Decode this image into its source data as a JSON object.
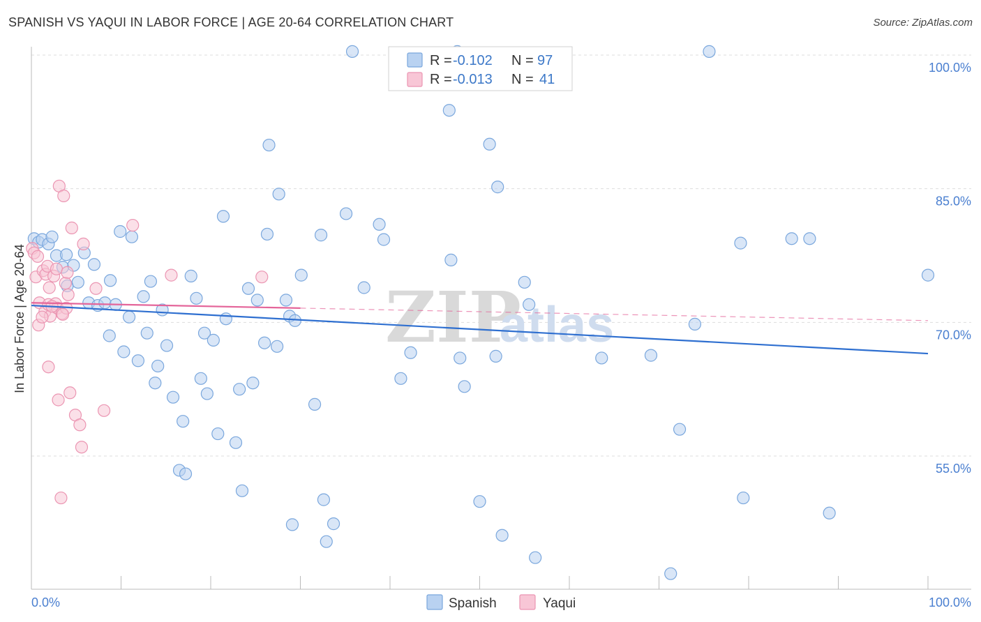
{
  "header": {
    "title": "SPANISH VS YAQUI IN LABOR FORCE | AGE 20-64 CORRELATION CHART",
    "source": "Source: ZipAtlas.com"
  },
  "watermark": {
    "zip": "ZIP",
    "atlas": "atlas"
  },
  "legend_top": {
    "rows": [
      {
        "series": "Spanish",
        "r_label": "R =",
        "r_value": "-0.102",
        "n_label": "N =",
        "n_value": "97"
      },
      {
        "series": "Yaqui",
        "r_label": "R =",
        "r_value": "-0.013",
        "n_label": "N =",
        "n_value": "41"
      }
    ]
  },
  "colors": {
    "spanish_fill": "#b9d2f1",
    "spanish_stroke": "#7aa7dd",
    "spanish_line": "#2e6fd0",
    "yaqui_fill": "#f8c6d6",
    "yaqui_stroke": "#eb95b2",
    "yaqui_line": "#e4659a",
    "grid": "#dddddd",
    "axis_label": "#4a7fd0"
  },
  "chart_data": {
    "type": "scatter",
    "title": "SPANISH VS YAQUI IN LABOR FORCE | AGE 20-64 CORRELATION CHART",
    "xlabel": "",
    "ylabel": "In Labor Force | Age 20-64",
    "xlim": [
      0,
      100
    ],
    "ylim": [
      40,
      101.5
    ],
    "x_tick_labels": [
      "0.0%",
      "100.0%"
    ],
    "y_ticks": [
      55,
      70,
      85,
      100
    ],
    "y_tick_labels": [
      "55.0%",
      "70.0%",
      "85.0%",
      "100.0%"
    ],
    "legend_bottom": [
      "Spanish",
      "Yaqui"
    ],
    "series": [
      {
        "name": "Spanish",
        "r": -0.102,
        "n": 97,
        "trend": {
          "x": [
            0,
            100
          ],
          "y": [
            71.9,
            66.5
          ],
          "dashed_beyond": null
        },
        "points": [
          [
            0.3,
            79.4
          ],
          [
            0.8,
            79.0
          ],
          [
            1.2,
            79.3
          ],
          [
            1.9,
            78.8
          ],
          [
            2.3,
            79.6
          ],
          [
            2.8,
            77.5
          ],
          [
            3.5,
            76.2
          ],
          [
            4.0,
            74.1
          ],
          [
            3.9,
            77.6
          ],
          [
            4.7,
            76.4
          ],
          [
            5.2,
            74.5
          ],
          [
            5.9,
            77.8
          ],
          [
            7.0,
            76.5
          ],
          [
            6.4,
            72.2
          ],
          [
            7.4,
            71.9
          ],
          [
            8.2,
            72.2
          ],
          [
            8.8,
            74.7
          ],
          [
            9.4,
            72.0
          ],
          [
            8.7,
            68.5
          ],
          [
            9.9,
            80.2
          ],
          [
            10.3,
            66.7
          ],
          [
            10.9,
            70.6
          ],
          [
            11.2,
            79.6
          ],
          [
            11.9,
            65.7
          ],
          [
            12.5,
            72.9
          ],
          [
            12.9,
            68.8
          ],
          [
            13.3,
            74.6
          ],
          [
            14.1,
            65.1
          ],
          [
            13.8,
            63.2
          ],
          [
            14.6,
            71.4
          ],
          [
            15.1,
            67.4
          ],
          [
            15.8,
            61.6
          ],
          [
            16.5,
            53.4
          ],
          [
            16.9,
            58.9
          ],
          [
            17.2,
            53.0
          ],
          [
            17.8,
            75.2
          ],
          [
            18.4,
            72.7
          ],
          [
            18.9,
            63.7
          ],
          [
            19.3,
            68.8
          ],
          [
            19.6,
            62.0
          ],
          [
            20.3,
            68.0
          ],
          [
            20.8,
            57.5
          ],
          [
            21.4,
            81.9
          ],
          [
            21.7,
            70.4
          ],
          [
            22.8,
            56.5
          ],
          [
            23.2,
            62.5
          ],
          [
            23.5,
            51.1
          ],
          [
            24.2,
            73.8
          ],
          [
            24.7,
            63.2
          ],
          [
            25.2,
            72.5
          ],
          [
            26.0,
            67.7
          ],
          [
            26.5,
            89.9
          ],
          [
            26.3,
            79.9
          ],
          [
            27.4,
            67.3
          ],
          [
            27.6,
            84.4
          ],
          [
            28.4,
            72.5
          ],
          [
            28.8,
            70.7
          ],
          [
            29.1,
            47.3
          ],
          [
            29.4,
            70.2
          ],
          [
            30.1,
            75.3
          ],
          [
            31.6,
            60.8
          ],
          [
            32.3,
            79.8
          ],
          [
            32.6,
            50.1
          ],
          [
            32.9,
            45.4
          ],
          [
            33.7,
            47.4
          ],
          [
            35.1,
            82.2
          ],
          [
            35.8,
            100.4
          ],
          [
            37.1,
            73.9
          ],
          [
            38.8,
            81.0
          ],
          [
            39.3,
            79.3
          ],
          [
            41.2,
            63.7
          ],
          [
            42.3,
            66.6
          ],
          [
            46.6,
            93.8
          ],
          [
            46.8,
            77.0
          ],
          [
            47.8,
            66.0
          ],
          [
            48.3,
            62.8
          ],
          [
            50.0,
            49.9
          ],
          [
            51.1,
            90.0
          ],
          [
            51.8,
            66.2
          ],
          [
            52.0,
            85.2
          ],
          [
            52.5,
            46.1
          ],
          [
            55.0,
            74.5
          ],
          [
            55.5,
            72.0
          ],
          [
            56.2,
            43.6
          ],
          [
            63.6,
            66.0
          ],
          [
            69.1,
            66.3
          ],
          [
            71.3,
            41.8
          ],
          [
            72.3,
            58.0
          ],
          [
            74.0,
            69.8
          ],
          [
            75.6,
            100.4
          ],
          [
            79.1,
            78.9
          ],
          [
            79.4,
            50.3
          ],
          [
            84.8,
            79.4
          ],
          [
            86.8,
            79.4
          ],
          [
            89.0,
            48.6
          ],
          [
            100.0,
            75.3
          ],
          [
            47.5,
            100.4
          ]
        ]
      },
      {
        "name": "Yaqui",
        "r": -0.013,
        "n": 41,
        "trend": {
          "x": [
            0,
            30
          ],
          "y": [
            72.2,
            71.6
          ],
          "dashed_to": [
            100,
            70.2
          ]
        },
        "points": [
          [
            0.1,
            78.3
          ],
          [
            0.3,
            77.8
          ],
          [
            0.5,
            75.1
          ],
          [
            0.7,
            77.4
          ],
          [
            0.9,
            72.2
          ],
          [
            0.8,
            69.7
          ],
          [
            1.3,
            75.8
          ],
          [
            1.5,
            71.2
          ],
          [
            1.6,
            75.4
          ],
          [
            1.8,
            76.3
          ],
          [
            1.9,
            72.0
          ],
          [
            2.0,
            73.9
          ],
          [
            1.9,
            65.0
          ],
          [
            2.1,
            70.7
          ],
          [
            2.5,
            75.2
          ],
          [
            2.7,
            72.1
          ],
          [
            2.8,
            76.0
          ],
          [
            2.9,
            71.6
          ],
          [
            3.0,
            61.3
          ],
          [
            3.1,
            85.3
          ],
          [
            3.3,
            50.3
          ],
          [
            3.4,
            71.0
          ],
          [
            3.6,
            84.2
          ],
          [
            3.8,
            74.4
          ],
          [
            3.9,
            71.6
          ],
          [
            4.0,
            75.6
          ],
          [
            4.1,
            73.1
          ],
          [
            4.3,
            62.1
          ],
          [
            4.5,
            80.6
          ],
          [
            4.9,
            59.6
          ],
          [
            5.4,
            58.5
          ],
          [
            5.6,
            56.0
          ],
          [
            5.8,
            78.8
          ],
          [
            7.2,
            73.8
          ],
          [
            8.1,
            60.1
          ],
          [
            11.3,
            80.9
          ],
          [
            15.6,
            75.3
          ],
          [
            25.7,
            75.1
          ],
          [
            1.2,
            70.6
          ],
          [
            2.3,
            71.8
          ],
          [
            3.5,
            70.9
          ]
        ]
      }
    ]
  }
}
